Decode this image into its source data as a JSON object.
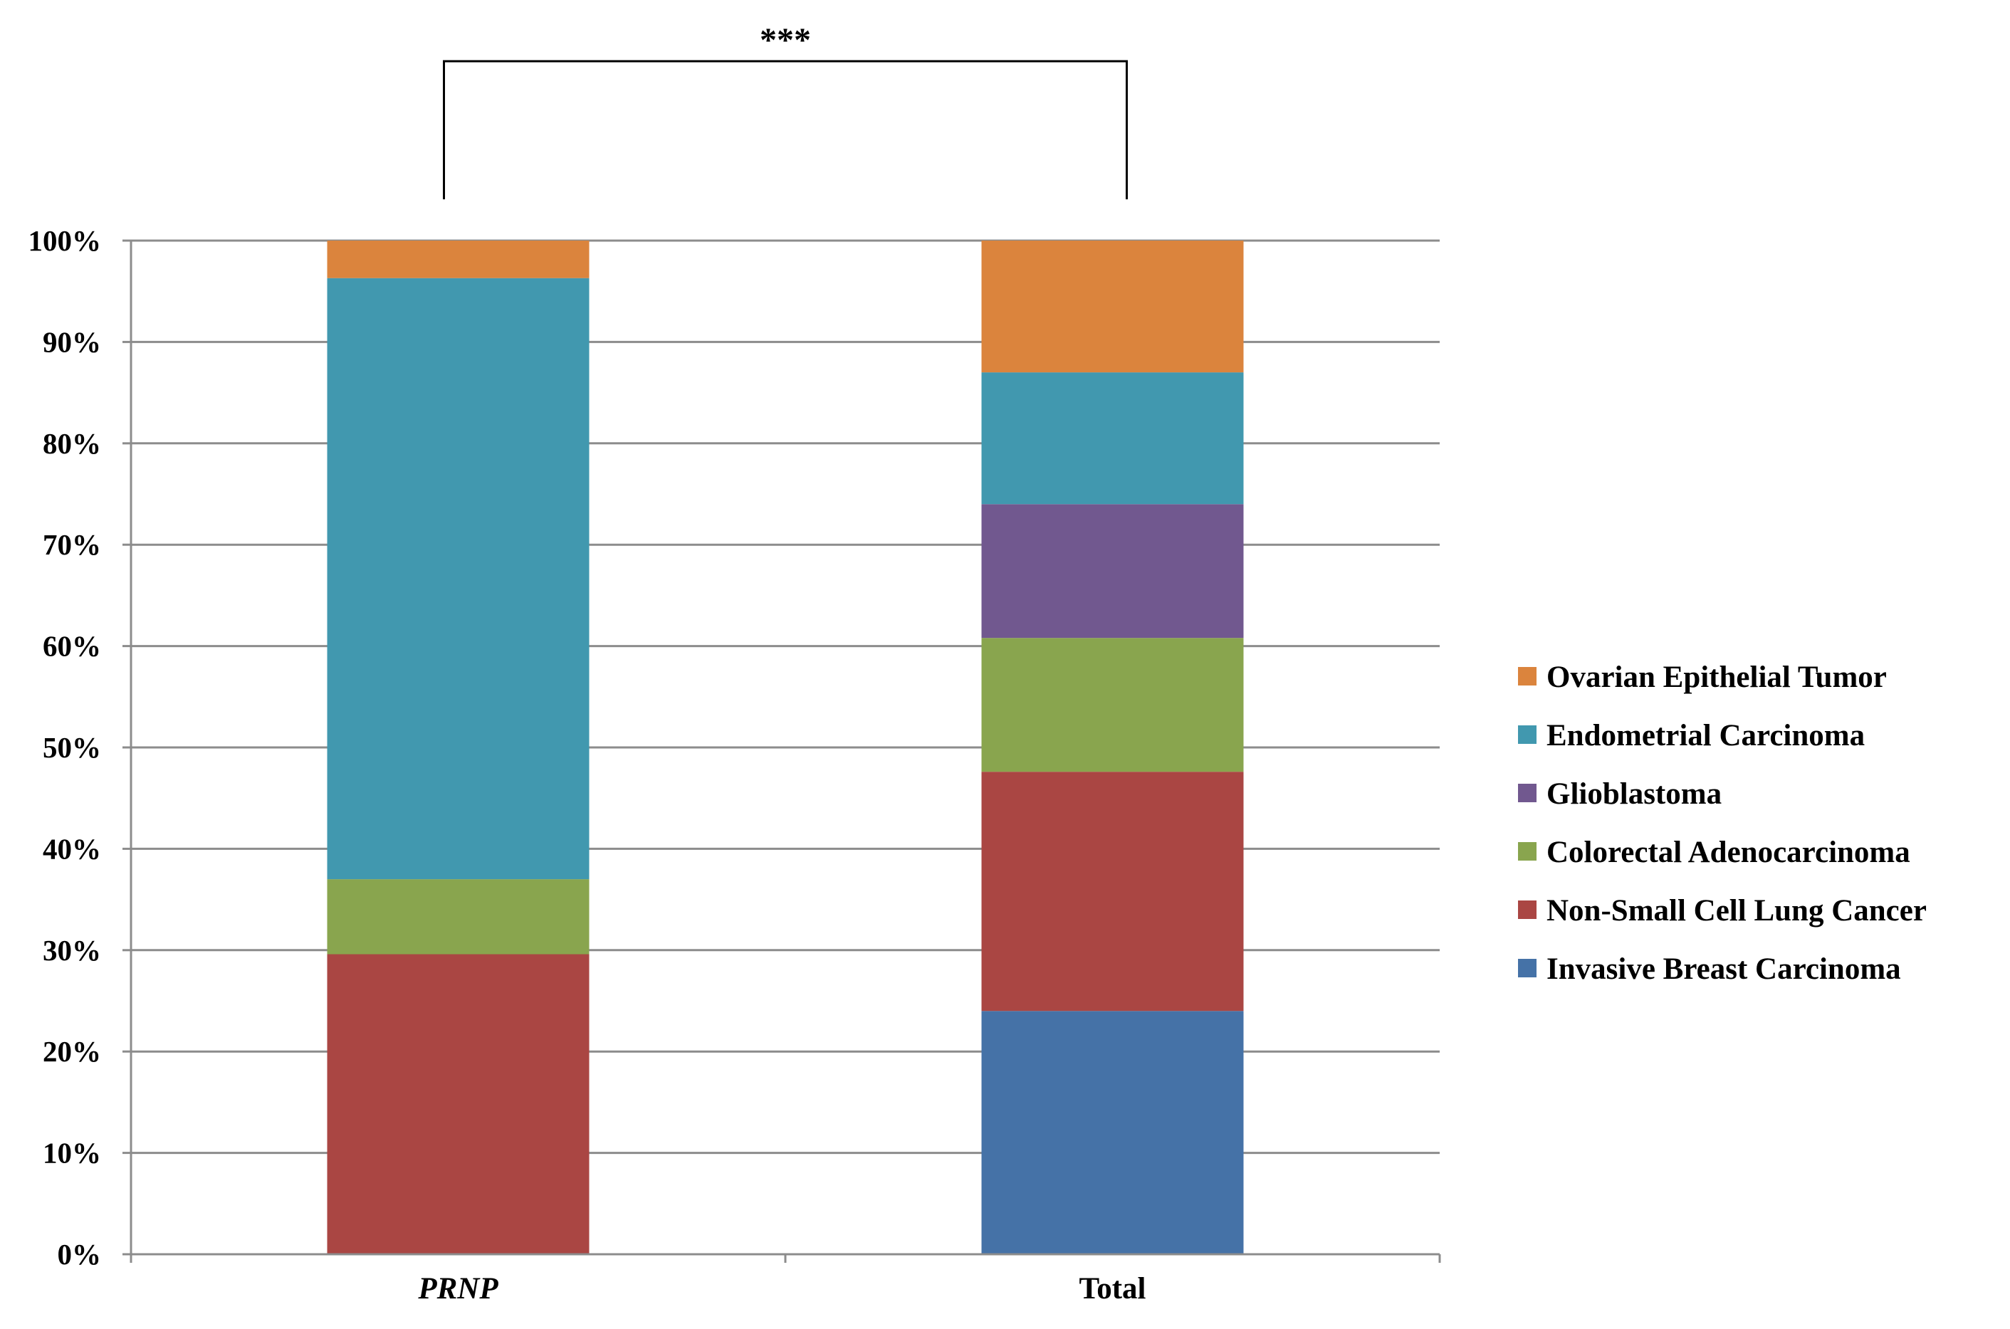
{
  "chart_data": {
    "type": "bar",
    "stacked": true,
    "percent": true,
    "categories": [
      "PRNP",
      "Total"
    ],
    "category_italic": [
      true,
      false
    ],
    "series": [
      {
        "name": "Invasive Breast Carcinoma",
        "color": "#4572A7",
        "values": [
          0,
          24
        ]
      },
      {
        "name": "Non-Small Cell Lung Cancer",
        "color": "#AA4643",
        "values": [
          29.6,
          23.6
        ]
      },
      {
        "name": "Colorectal Adenocarcinoma",
        "color": "#89A54E",
        "values": [
          7.4,
          13.2
        ]
      },
      {
        "name": "Glioblastoma",
        "color": "#71588F",
        "values": [
          0,
          13.2
        ]
      },
      {
        "name": "Endometrial Carcinoma",
        "color": "#4198AF",
        "values": [
          59.3,
          13.0
        ]
      },
      {
        "name": "Ovarian Epithelial Tumor",
        "color": "#DB843D",
        "values": [
          3.7,
          13.0
        ]
      }
    ],
    "ylim": [
      0,
      100
    ],
    "yticks": [
      "0%",
      "10%",
      "20%",
      "30%",
      "40%",
      "50%",
      "60%",
      "70%",
      "80%",
      "90%",
      "100%"
    ],
    "grid": true,
    "legend_position": "right",
    "legend_order": [
      5,
      4,
      3,
      2,
      1,
      0
    ],
    "annotations": [
      {
        "text": "***",
        "type": "significance-bracket",
        "between": [
          "PRNP",
          "Total"
        ]
      }
    ]
  }
}
